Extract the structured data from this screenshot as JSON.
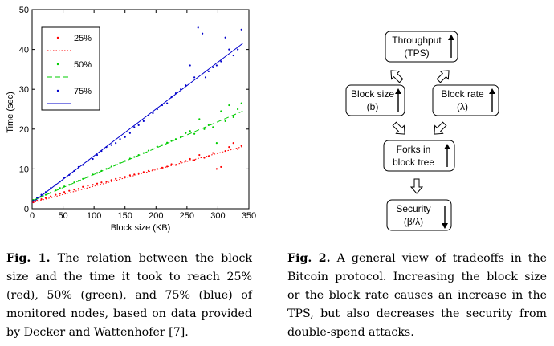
{
  "figure1": {
    "chart_data": {
      "type": "scatter",
      "xlabel": "Block size (KB)",
      "ylabel": "Time (sec)",
      "xlim": [
        0,
        350
      ],
      "ylim": [
        0,
        50
      ],
      "x_ticks": [
        0,
        50,
        100,
        150,
        200,
        250,
        300,
        350
      ],
      "y_ticks": [
        0,
        10,
        20,
        30,
        40,
        50
      ],
      "grid": false,
      "legend_position": "top-left",
      "series": [
        {
          "name": "25%",
          "color": "#ff0000",
          "fit_line_style": "dotted",
          "fit": [
            [
              0,
              1.5
            ],
            [
              340,
              15.6
            ]
          ],
          "points": [
            [
              2,
              1.6
            ],
            [
              8,
              2.0
            ],
            [
              15,
              2.4
            ],
            [
              22,
              2.7
            ],
            [
              30,
              3.1
            ],
            [
              38,
              3.5
            ],
            [
              45,
              3.8
            ],
            [
              52,
              4.2
            ],
            [
              60,
              4.5
            ],
            [
              68,
              4.8
            ],
            [
              75,
              5.0
            ],
            [
              82,
              5.5
            ],
            [
              90,
              5.8
            ],
            [
              98,
              6.0
            ],
            [
              105,
              6.3
            ],
            [
              112,
              6.6
            ],
            [
              120,
              6.8
            ],
            [
              128,
              7.2
            ],
            [
              135,
              7.5
            ],
            [
              142,
              7.8
            ],
            [
              150,
              8.0
            ],
            [
              158,
              8.4
            ],
            [
              165,
              8.6
            ],
            [
              172,
              8.9
            ],
            [
              180,
              9.2
            ],
            [
              188,
              9.5
            ],
            [
              195,
              9.8
            ],
            [
              202,
              10.0
            ],
            [
              210,
              10.3
            ],
            [
              218,
              10.6
            ],
            [
              225,
              11.2
            ],
            [
              232,
              11.0
            ],
            [
              240,
              11.8
            ],
            [
              248,
              12.0
            ],
            [
              255,
              12.5
            ],
            [
              262,
              12.2
            ],
            [
              270,
              13.5
            ],
            [
              278,
              12.8
            ],
            [
              285,
              13.2
            ],
            [
              292,
              14.0
            ],
            [
              298,
              10.0
            ],
            [
              305,
              10.5
            ],
            [
              312,
              14.5
            ],
            [
              318,
              15.5
            ],
            [
              325,
              16.5
            ],
            [
              332,
              15.0
            ],
            [
              338,
              15.8
            ]
          ]
        },
        {
          "name": "50%",
          "color": "#00cc00",
          "fit_line_style": "dashed",
          "fit": [
            [
              0,
              2.0
            ],
            [
              340,
              24.5
            ]
          ],
          "points": [
            [
              2,
              2.2
            ],
            [
              8,
              2.6
            ],
            [
              15,
              3.0
            ],
            [
              22,
              3.5
            ],
            [
              30,
              4.0
            ],
            [
              38,
              4.6
            ],
            [
              45,
              5.2
            ],
            [
              52,
              5.6
            ],
            [
              60,
              6.0
            ],
            [
              68,
              6.6
            ],
            [
              75,
              7.0
            ],
            [
              82,
              7.5
            ],
            [
              90,
              8.0
            ],
            [
              98,
              8.6
            ],
            [
              105,
              9.0
            ],
            [
              112,
              9.5
            ],
            [
              120,
              10.0
            ],
            [
              128,
              10.6
            ],
            [
              135,
              11.0
            ],
            [
              142,
              11.5
            ],
            [
              150,
              12.0
            ],
            [
              158,
              12.6
            ],
            [
              165,
              13.0
            ],
            [
              172,
              13.5
            ],
            [
              180,
              14.0
            ],
            [
              188,
              14.6
            ],
            [
              195,
              15.0
            ],
            [
              202,
              15.6
            ],
            [
              210,
              16.0
            ],
            [
              218,
              16.6
            ],
            [
              225,
              17.0
            ],
            [
              232,
              17.5
            ],
            [
              240,
              18.0
            ],
            [
              248,
              19.0
            ],
            [
              255,
              19.5
            ],
            [
              262,
              18.8
            ],
            [
              270,
              22.5
            ],
            [
              278,
              20.0
            ],
            [
              285,
              21.0
            ],
            [
              292,
              20.5
            ],
            [
              298,
              16.5
            ],
            [
              305,
              24.5
            ],
            [
              312,
              22.0
            ],
            [
              318,
              26.0
            ],
            [
              325,
              23.0
            ],
            [
              332,
              25.0
            ],
            [
              338,
              26.5
            ]
          ]
        },
        {
          "name": "75%",
          "color": "#0000cc",
          "fit_line_style": "solid",
          "fit": [
            [
              0,
              1.5
            ],
            [
              340,
              41.5
            ]
          ],
          "points": [
            [
              2,
              2.0
            ],
            [
              8,
              2.8
            ],
            [
              15,
              3.5
            ],
            [
              22,
              4.2
            ],
            [
              30,
              5.2
            ],
            [
              38,
              6.0
            ],
            [
              45,
              6.8
            ],
            [
              52,
              7.8
            ],
            [
              60,
              8.5
            ],
            [
              68,
              9.5
            ],
            [
              75,
              10.5
            ],
            [
              82,
              11.0
            ],
            [
              90,
              12.0
            ],
            [
              98,
              12.5
            ],
            [
              105,
              13.5
            ],
            [
              112,
              14.5
            ],
            [
              120,
              15.5
            ],
            [
              128,
              16.0
            ],
            [
              135,
              16.5
            ],
            [
              142,
              17.5
            ],
            [
              150,
              18.0
            ],
            [
              158,
              19.0
            ],
            [
              165,
              20.5
            ],
            [
              172,
              21.0
            ],
            [
              180,
              22.0
            ],
            [
              188,
              23.5
            ],
            [
              195,
              24.0
            ],
            [
              202,
              25.0
            ],
            [
              210,
              26.0
            ],
            [
              218,
              26.5
            ],
            [
              225,
              28.0
            ],
            [
              232,
              29.0
            ],
            [
              240,
              30.0
            ],
            [
              248,
              31.0
            ],
            [
              255,
              36.0
            ],
            [
              262,
              33.0
            ],
            [
              268,
              45.5
            ],
            [
              275,
              44.0
            ],
            [
              280,
              33.0
            ],
            [
              285,
              34.5
            ],
            [
              292,
              35.5
            ],
            [
              298,
              36.0
            ],
            [
              305,
              37.0
            ],
            [
              312,
              43.0
            ],
            [
              318,
              40.0
            ],
            [
              325,
              38.5
            ],
            [
              332,
              40.0
            ],
            [
              338,
              45.0
            ]
          ]
        }
      ]
    },
    "caption": {
      "label": "Fig. 1.",
      "text": " The relation between the block size and the time it took to reach 25% (red), 50% (green), and 75% (blue) of monitored nodes, based on data provided by Decker and Wattenhofer [7]."
    }
  },
  "figure2": {
    "nodes": {
      "throughput": {
        "line1": "Throughput",
        "line2": "(TPS)",
        "arrow": "up"
      },
      "block_size": {
        "line1": "Block size",
        "line2": "(b)",
        "arrow": "up"
      },
      "block_rate": {
        "line1": "Block rate",
        "line2": "(λ)",
        "arrow": "up"
      },
      "forks": {
        "line1": "Forks in",
        "line2": "block tree",
        "arrow": "up"
      },
      "security": {
        "line1": "Security",
        "line2": "(β/λ)",
        "arrow": "down"
      }
    },
    "caption": {
      "label": "Fig. 2.",
      "text": " A general view of tradeoffs in the Bitcoin protocol. Increasing the block size or the block rate causes an increase in the TPS, but also decreases the security from double-spend attacks."
    }
  }
}
